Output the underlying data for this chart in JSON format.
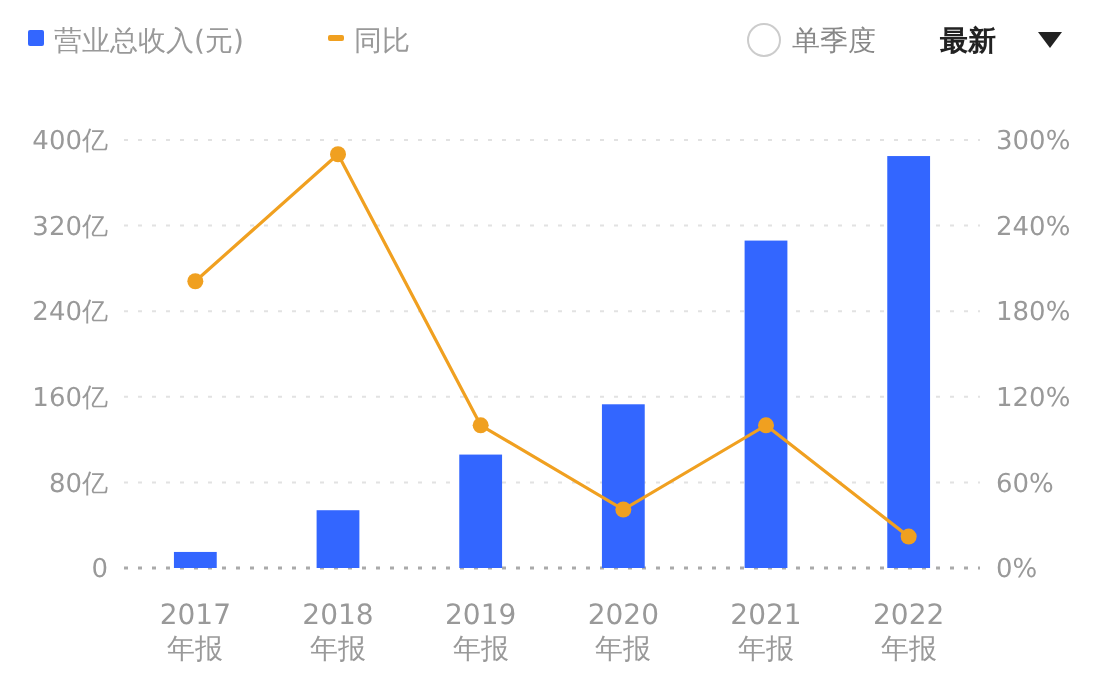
{
  "chart_data": {
    "type": "bar",
    "categories": [
      "2017\n年报",
      "2018\n年报",
      "2019\n年报",
      "2020\n年报",
      "2021\n年报",
      "2022\n年报"
    ],
    "series": [
      {
        "name": "营业总收入(元)",
        "color": "#3366ff",
        "values": [
          15,
          54,
          106,
          153,
          306,
          385
        ]
      },
      {
        "name": "同比",
        "type": "line",
        "axis": "y2",
        "color": "#f0a020",
        "values": [
          201,
          290,
          100,
          41,
          100,
          22
        ]
      }
    ],
    "ylim": [
      0,
      400
    ],
    "yticks": [
      {
        "value": 0,
        "label": "0"
      },
      {
        "value": 80,
        "label": "80亿"
      },
      {
        "value": 160,
        "label": "160亿"
      },
      {
        "value": 240,
        "label": "240亿"
      },
      {
        "value": 320,
        "label": "320亿"
      },
      {
        "value": 400,
        "label": "400亿"
      }
    ],
    "y2lim": [
      0,
      300
    ],
    "y2ticks": [
      {
        "value": 0,
        "label": "0%"
      },
      {
        "value": 60,
        "label": "60%"
      },
      {
        "value": 120,
        "label": "120%"
      },
      {
        "value": 180,
        "label": "180%"
      },
      {
        "value": 240,
        "label": "240%"
      },
      {
        "value": 300,
        "label": "300%"
      }
    ],
    "grid": "y",
    "legend": "top left",
    "marker": "circle",
    "line_style": "solid",
    "annotations": [
      "单季度",
      "最新"
    ]
  }
}
